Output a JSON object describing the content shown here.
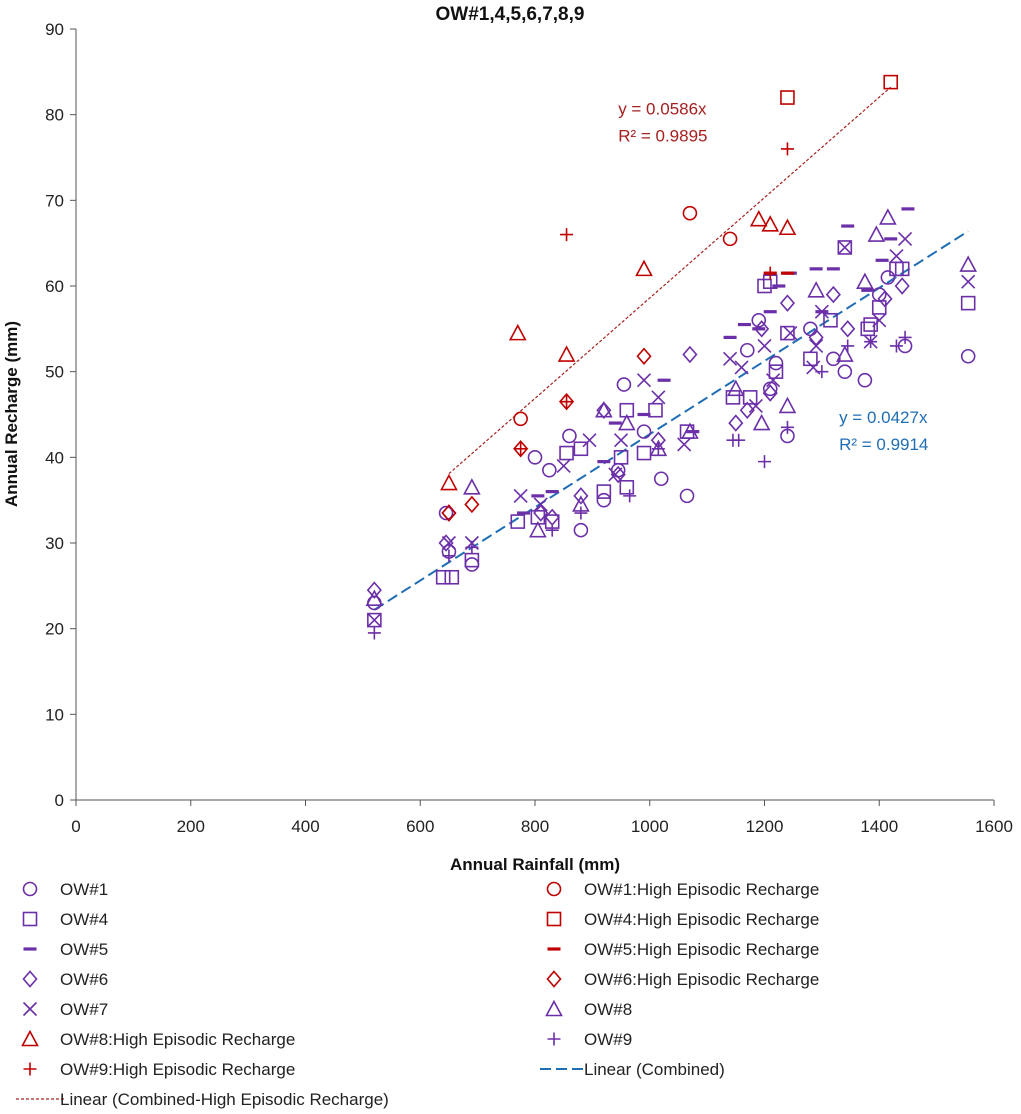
{
  "colors": {
    "normal": "#6B2FA8",
    "high": "#C00000",
    "combined_line": "#1F6EB4",
    "high_line": "#A52020"
  },
  "chart_data": {
    "type": "scatter",
    "title": "OW#1,4,5,6,7,8,9",
    "xlabel": "Annual Rainfall (mm)",
    "ylabel": "Annual Recharge (mm)",
    "xlim": [
      0,
      1600
    ],
    "ylim": [
      0,
      90
    ],
    "xticks": [
      0,
      200,
      400,
      600,
      800,
      1000,
      1200,
      1400,
      1600
    ],
    "yticks": [
      0,
      10,
      20,
      30,
      40,
      50,
      60,
      70,
      80,
      90
    ],
    "grid": false,
    "series": [
      {
        "name": "OW#1",
        "marker": "circle",
        "color_key": "normal",
        "points": [
          [
            520,
            23
          ],
          [
            645,
            33.5
          ],
          [
            650,
            29
          ],
          [
            690,
            27.5
          ],
          [
            800,
            40
          ],
          [
            825,
            38.5
          ],
          [
            860,
            42.5
          ],
          [
            880,
            31.5
          ],
          [
            920,
            35
          ],
          [
            945,
            38.5
          ],
          [
            955,
            48.5
          ],
          [
            990,
            43
          ],
          [
            1020,
            37.5
          ],
          [
            1065,
            35.5
          ],
          [
            1170,
            52.5
          ],
          [
            1190,
            56
          ],
          [
            1210,
            48
          ],
          [
            1220,
            51
          ],
          [
            1240,
            42.5
          ],
          [
            1280,
            55
          ],
          [
            1320,
            51.5
          ],
          [
            1340,
            50
          ],
          [
            1375,
            49
          ],
          [
            1400,
            59
          ],
          [
            1415,
            61
          ],
          [
            1445,
            53
          ],
          [
            1555,
            51.8
          ]
        ]
      },
      {
        "name": "OW#4",
        "marker": "square",
        "color_key": "normal",
        "points": [
          [
            520,
            21
          ],
          [
            640,
            26
          ],
          [
            655,
            26
          ],
          [
            690,
            28
          ],
          [
            770,
            32.5
          ],
          [
            805,
            33
          ],
          [
            830,
            32.5
          ],
          [
            855,
            40.5
          ],
          [
            880,
            41
          ],
          [
            920,
            36
          ],
          [
            950,
            40
          ],
          [
            960,
            36.5
          ],
          [
            960,
            45.5
          ],
          [
            990,
            40.5
          ],
          [
            1010,
            45.5
          ],
          [
            1065,
            43
          ],
          [
            1145,
            47
          ],
          [
            1175,
            47
          ],
          [
            1200,
            60
          ],
          [
            1210,
            60.5
          ],
          [
            1220,
            50
          ],
          [
            1240,
            54.5
          ],
          [
            1280,
            51.5
          ],
          [
            1315,
            56
          ],
          [
            1340,
            64.5
          ],
          [
            1380,
            55
          ],
          [
            1385,
            55.5
          ],
          [
            1400,
            57.5
          ],
          [
            1430,
            62
          ],
          [
            1440,
            62
          ],
          [
            1555,
            58
          ]
        ]
      },
      {
        "name": "OW#5",
        "marker": "dash",
        "color_key": "normal",
        "points": [
          [
            780,
            33.5
          ],
          [
            805,
            35.5
          ],
          [
            830,
            36
          ],
          [
            920,
            39.5
          ],
          [
            940,
            44
          ],
          [
            990,
            45
          ],
          [
            1025,
            49
          ],
          [
            1075,
            43
          ],
          [
            1140,
            54
          ],
          [
            1165,
            55.5
          ],
          [
            1190,
            55
          ],
          [
            1210,
            57
          ],
          [
            1225,
            60
          ],
          [
            1245,
            61.5
          ],
          [
            1290,
            62
          ],
          [
            1300,
            57
          ],
          [
            1320,
            62
          ],
          [
            1345,
            67
          ],
          [
            1380,
            59.5
          ],
          [
            1405,
            63
          ],
          [
            1420,
            65.5
          ],
          [
            1450,
            69
          ]
        ]
      },
      {
        "name": "OW#6",
        "marker": "diamond",
        "color_key": "normal",
        "points": [
          [
            520,
            24.5
          ],
          [
            645,
            30
          ],
          [
            650,
            33.5
          ],
          [
            810,
            33.5
          ],
          [
            830,
            33
          ],
          [
            880,
            35.5
          ],
          [
            920,
            45.5
          ],
          [
            945,
            38
          ],
          [
            1015,
            42
          ],
          [
            1070,
            52
          ],
          [
            1150,
            44
          ],
          [
            1170,
            45.5
          ],
          [
            1195,
            55
          ],
          [
            1210,
            47.5
          ],
          [
            1240,
            58
          ],
          [
            1290,
            54
          ],
          [
            1320,
            59
          ],
          [
            1345,
            55
          ],
          [
            1410,
            58.5
          ],
          [
            1440,
            60
          ]
        ]
      },
      {
        "name": "OW#7",
        "marker": "cross",
        "color_key": "normal",
        "points": [
          [
            520,
            21
          ],
          [
            650,
            30
          ],
          [
            690,
            30
          ],
          [
            775,
            35.5
          ],
          [
            810,
            34.5
          ],
          [
            850,
            39
          ],
          [
            895,
            42
          ],
          [
            940,
            38
          ],
          [
            950,
            42
          ],
          [
            990,
            49
          ],
          [
            1015,
            47
          ],
          [
            1060,
            41.5
          ],
          [
            1140,
            51.5
          ],
          [
            1160,
            50.5
          ],
          [
            1185,
            46
          ],
          [
            1200,
            53
          ],
          [
            1215,
            49
          ],
          [
            1245,
            54.5
          ],
          [
            1285,
            50.5
          ],
          [
            1290,
            53
          ],
          [
            1300,
            57
          ],
          [
            1340,
            64.5
          ],
          [
            1385,
            53.5
          ],
          [
            1400,
            56
          ],
          [
            1430,
            63.5
          ],
          [
            1445,
            65.5
          ],
          [
            1555,
            60.5
          ]
        ]
      },
      {
        "name": "OW#8",
        "marker": "triangle",
        "color_key": "normal",
        "points": [
          [
            520,
            23.5
          ],
          [
            690,
            36.5
          ],
          [
            805,
            31.5
          ],
          [
            880,
            34.5
          ],
          [
            920,
            45.5
          ],
          [
            960,
            44
          ],
          [
            1015,
            41
          ],
          [
            1070,
            43
          ],
          [
            1150,
            48
          ],
          [
            1195,
            44
          ],
          [
            1240,
            46
          ],
          [
            1290,
            59.5
          ],
          [
            1340,
            52
          ],
          [
            1375,
            60.5
          ],
          [
            1395,
            66
          ],
          [
            1415,
            68
          ],
          [
            1555,
            62.5
          ]
        ]
      },
      {
        "name": "OW#9",
        "marker": "plus",
        "color_key": "normal",
        "points": [
          [
            520,
            19.5
          ],
          [
            650,
            28.5
          ],
          [
            690,
            29.5
          ],
          [
            830,
            31.5
          ],
          [
            880,
            33.5
          ],
          [
            965,
            35.5
          ],
          [
            1015,
            41
          ],
          [
            1145,
            42
          ],
          [
            1155,
            42
          ],
          [
            1200,
            39.5
          ],
          [
            1240,
            43.5
          ],
          [
            1300,
            50
          ],
          [
            1345,
            53
          ],
          [
            1385,
            53.5
          ],
          [
            1430,
            53
          ],
          [
            1445,
            54
          ]
        ]
      },
      {
        "name": "OW#1:High Episodic Recharge",
        "marker": "circle",
        "color_key": "high",
        "points": [
          [
            775,
            44.5
          ],
          [
            1070,
            68.5
          ],
          [
            1140,
            65.5
          ]
        ]
      },
      {
        "name": "OW#4:High Episodic Recharge",
        "marker": "square",
        "color_key": "high",
        "points": [
          [
            1240,
            82
          ],
          [
            1420,
            83.8
          ]
        ]
      },
      {
        "name": "OW#5:High Episodic Recharge",
        "marker": "dash",
        "color_key": "high",
        "points": [
          [
            1210,
            61.5
          ],
          [
            1240,
            61.5
          ]
        ]
      },
      {
        "name": "OW#6:High Episodic Recharge",
        "marker": "diamond",
        "color_key": "high",
        "points": [
          [
            650,
            33.5
          ],
          [
            690,
            34.5
          ],
          [
            775,
            41
          ],
          [
            855,
            46.5
          ],
          [
            990,
            51.8
          ]
        ]
      },
      {
        "name": "OW#8:High Episodic Recharge",
        "marker": "triangle",
        "color_key": "high",
        "points": [
          [
            650,
            37
          ],
          [
            770,
            54.5
          ],
          [
            855,
            52
          ],
          [
            990,
            62
          ],
          [
            1190,
            67.8
          ],
          [
            1210,
            67.2
          ],
          [
            1240,
            66.8
          ]
        ]
      },
      {
        "name": "OW#9:High Episodic Recharge",
        "marker": "plus",
        "color_key": "high",
        "points": [
          [
            775,
            41
          ],
          [
            855,
            46.5
          ],
          [
            855,
            66
          ],
          [
            1210,
            61.5
          ],
          [
            1240,
            76
          ]
        ]
      }
    ],
    "trendlines": [
      {
        "name": "Linear (Combined)",
        "slope": 0.0427,
        "x_range": [
          520,
          1555
        ],
        "style": "dashed",
        "color_key": "combined_line",
        "equation": "y = 0.0427x",
        "r2": "R² = 0.9914",
        "label_pos": [
          1330,
          44
        ]
      },
      {
        "name": "Linear (Combined-High Episodic Recharge)",
        "slope": 0.0586,
        "x_range": [
          650,
          1420
        ],
        "style": "dotted",
        "color_key": "high_line",
        "equation": "y = 0.0586x",
        "r2": "R² = 0.9895",
        "label_pos": [
          945,
          80
        ]
      }
    ],
    "legend": {
      "placement": "bottom",
      "items": [
        {
          "label": "OW#1",
          "marker": "circle",
          "color_key": "normal"
        },
        {
          "label": "OW#1:High Episodic Recharge",
          "marker": "circle",
          "color_key": "high"
        },
        {
          "label": "OW#4",
          "marker": "square",
          "color_key": "normal"
        },
        {
          "label": "OW#4:High Episodic Recharge",
          "marker": "square",
          "color_key": "high"
        },
        {
          "label": "OW#5",
          "marker": "dash",
          "color_key": "normal"
        },
        {
          "label": "OW#5:High Episodic Recharge",
          "marker": "dash",
          "color_key": "high"
        },
        {
          "label": "OW#6",
          "marker": "diamond",
          "color_key": "normal"
        },
        {
          "label": "OW#6:High Episodic Recharge",
          "marker": "diamond",
          "color_key": "high"
        },
        {
          "label": "OW#7",
          "marker": "cross",
          "color_key": "normal"
        },
        {
          "label": "OW#8",
          "marker": "triangle",
          "color_key": "normal"
        },
        {
          "label": "OW#8:High Episodic Recharge",
          "marker": "triangle",
          "color_key": "high"
        },
        {
          "label": "OW#9",
          "marker": "plus",
          "color_key": "normal"
        },
        {
          "label": "OW#9:High Episodic Recharge",
          "marker": "plus",
          "color_key": "high"
        },
        {
          "label": "Linear (Combined)",
          "marker": "line-dashed",
          "color_key": "combined_line"
        },
        {
          "label": "Linear (Combined-High Episodic Recharge)",
          "marker": "line-dotted",
          "color_key": "high_line"
        }
      ]
    }
  }
}
